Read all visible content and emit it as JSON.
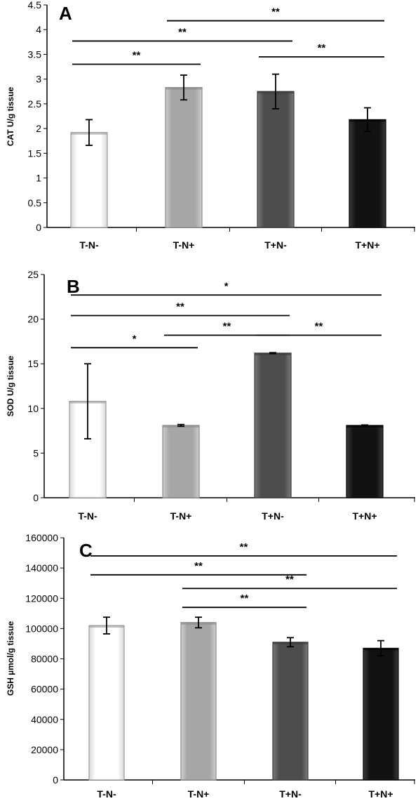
{
  "chart_data": [
    {
      "panel": "A",
      "type": "bar",
      "ylabel": "CAT U/g tissue",
      "categories": [
        "T-N-",
        "T-N+",
        "T+N-",
        "T+N+"
      ],
      "values": [
        1.92,
        2.83,
        2.75,
        2.18
      ],
      "errors": [
        0.26,
        0.25,
        0.35,
        0.24
      ],
      "ylim": [
        0,
        4.5
      ],
      "yticks": [
        "0",
        "0.5",
        "1",
        "1.5",
        "2",
        "2.5",
        "3",
        "3.5",
        "4",
        "4.5"
      ],
      "grid": false,
      "significance": [
        {
          "from": 0,
          "to": 1,
          "label": "**",
          "y": 3.3
        },
        {
          "from": 0,
          "to": 2,
          "label": "**",
          "y": 3.77
        },
        {
          "from": 1,
          "to": 3,
          "label": "**",
          "y": 4.18
        },
        {
          "from": 2,
          "to": 3,
          "label": "**",
          "y": 3.45
        }
      ]
    },
    {
      "panel": "B",
      "type": "bar",
      "ylabel": "SOD U/g tissue",
      "categories": [
        "T-N-",
        "T-N+",
        "T+N-",
        "T+N+"
      ],
      "values": [
        10.8,
        8.1,
        16.2,
        8.1
      ],
      "errors": [
        4.2,
        0.1,
        0.05,
        0.05
      ],
      "ylim": [
        0,
        25
      ],
      "yticks": [
        "0",
        "5",
        "10",
        "15",
        "20",
        "25"
      ],
      "grid": false,
      "significance": [
        {
          "from": 0,
          "to": 1,
          "label": "*",
          "y": 16.8
        },
        {
          "from": 1,
          "to": 2,
          "label": "**",
          "y": 18.2
        },
        {
          "from": 0,
          "to": 2,
          "label": "**",
          "y": 20.4
        },
        {
          "from": 0,
          "to": 3,
          "label": "*",
          "y": 22.7
        },
        {
          "from": 2,
          "to": 3,
          "label": "**",
          "y": 18.2
        }
      ]
    },
    {
      "panel": "C",
      "type": "bar",
      "ylabel": "GSH µmol/g tissue",
      "categories": [
        "T-N-",
        "T-N+",
        "T+N-",
        "T+N+"
      ],
      "values": [
        102000,
        104000,
        91000,
        87000
      ],
      "errors": [
        5500,
        3500,
        3000,
        5000
      ],
      "ylim": [
        0,
        160000
      ],
      "yticks": [
        "0",
        "20000",
        "40000",
        "60000",
        "80000",
        "100000",
        "120000",
        "140000",
        "160000"
      ],
      "grid": false,
      "significance": [
        {
          "from": 0,
          "to": 3,
          "label": "**",
          "y": 148000
        },
        {
          "from": 0,
          "to": 2,
          "label": "**",
          "y": 135500
        },
        {
          "from": 1,
          "to": 3,
          "label": "**",
          "y": 126500
        },
        {
          "from": 1,
          "to": 2,
          "label": "**",
          "y": 114000
        }
      ]
    }
  ],
  "colors": {
    "bars": [
      "#ffffff",
      "#a6a6a6",
      "#4d4d4d",
      "#121212"
    ],
    "bar_outline": [
      "#9a9a9a",
      "#8a8a8a",
      "#3a3a3a",
      "#000000"
    ]
  }
}
